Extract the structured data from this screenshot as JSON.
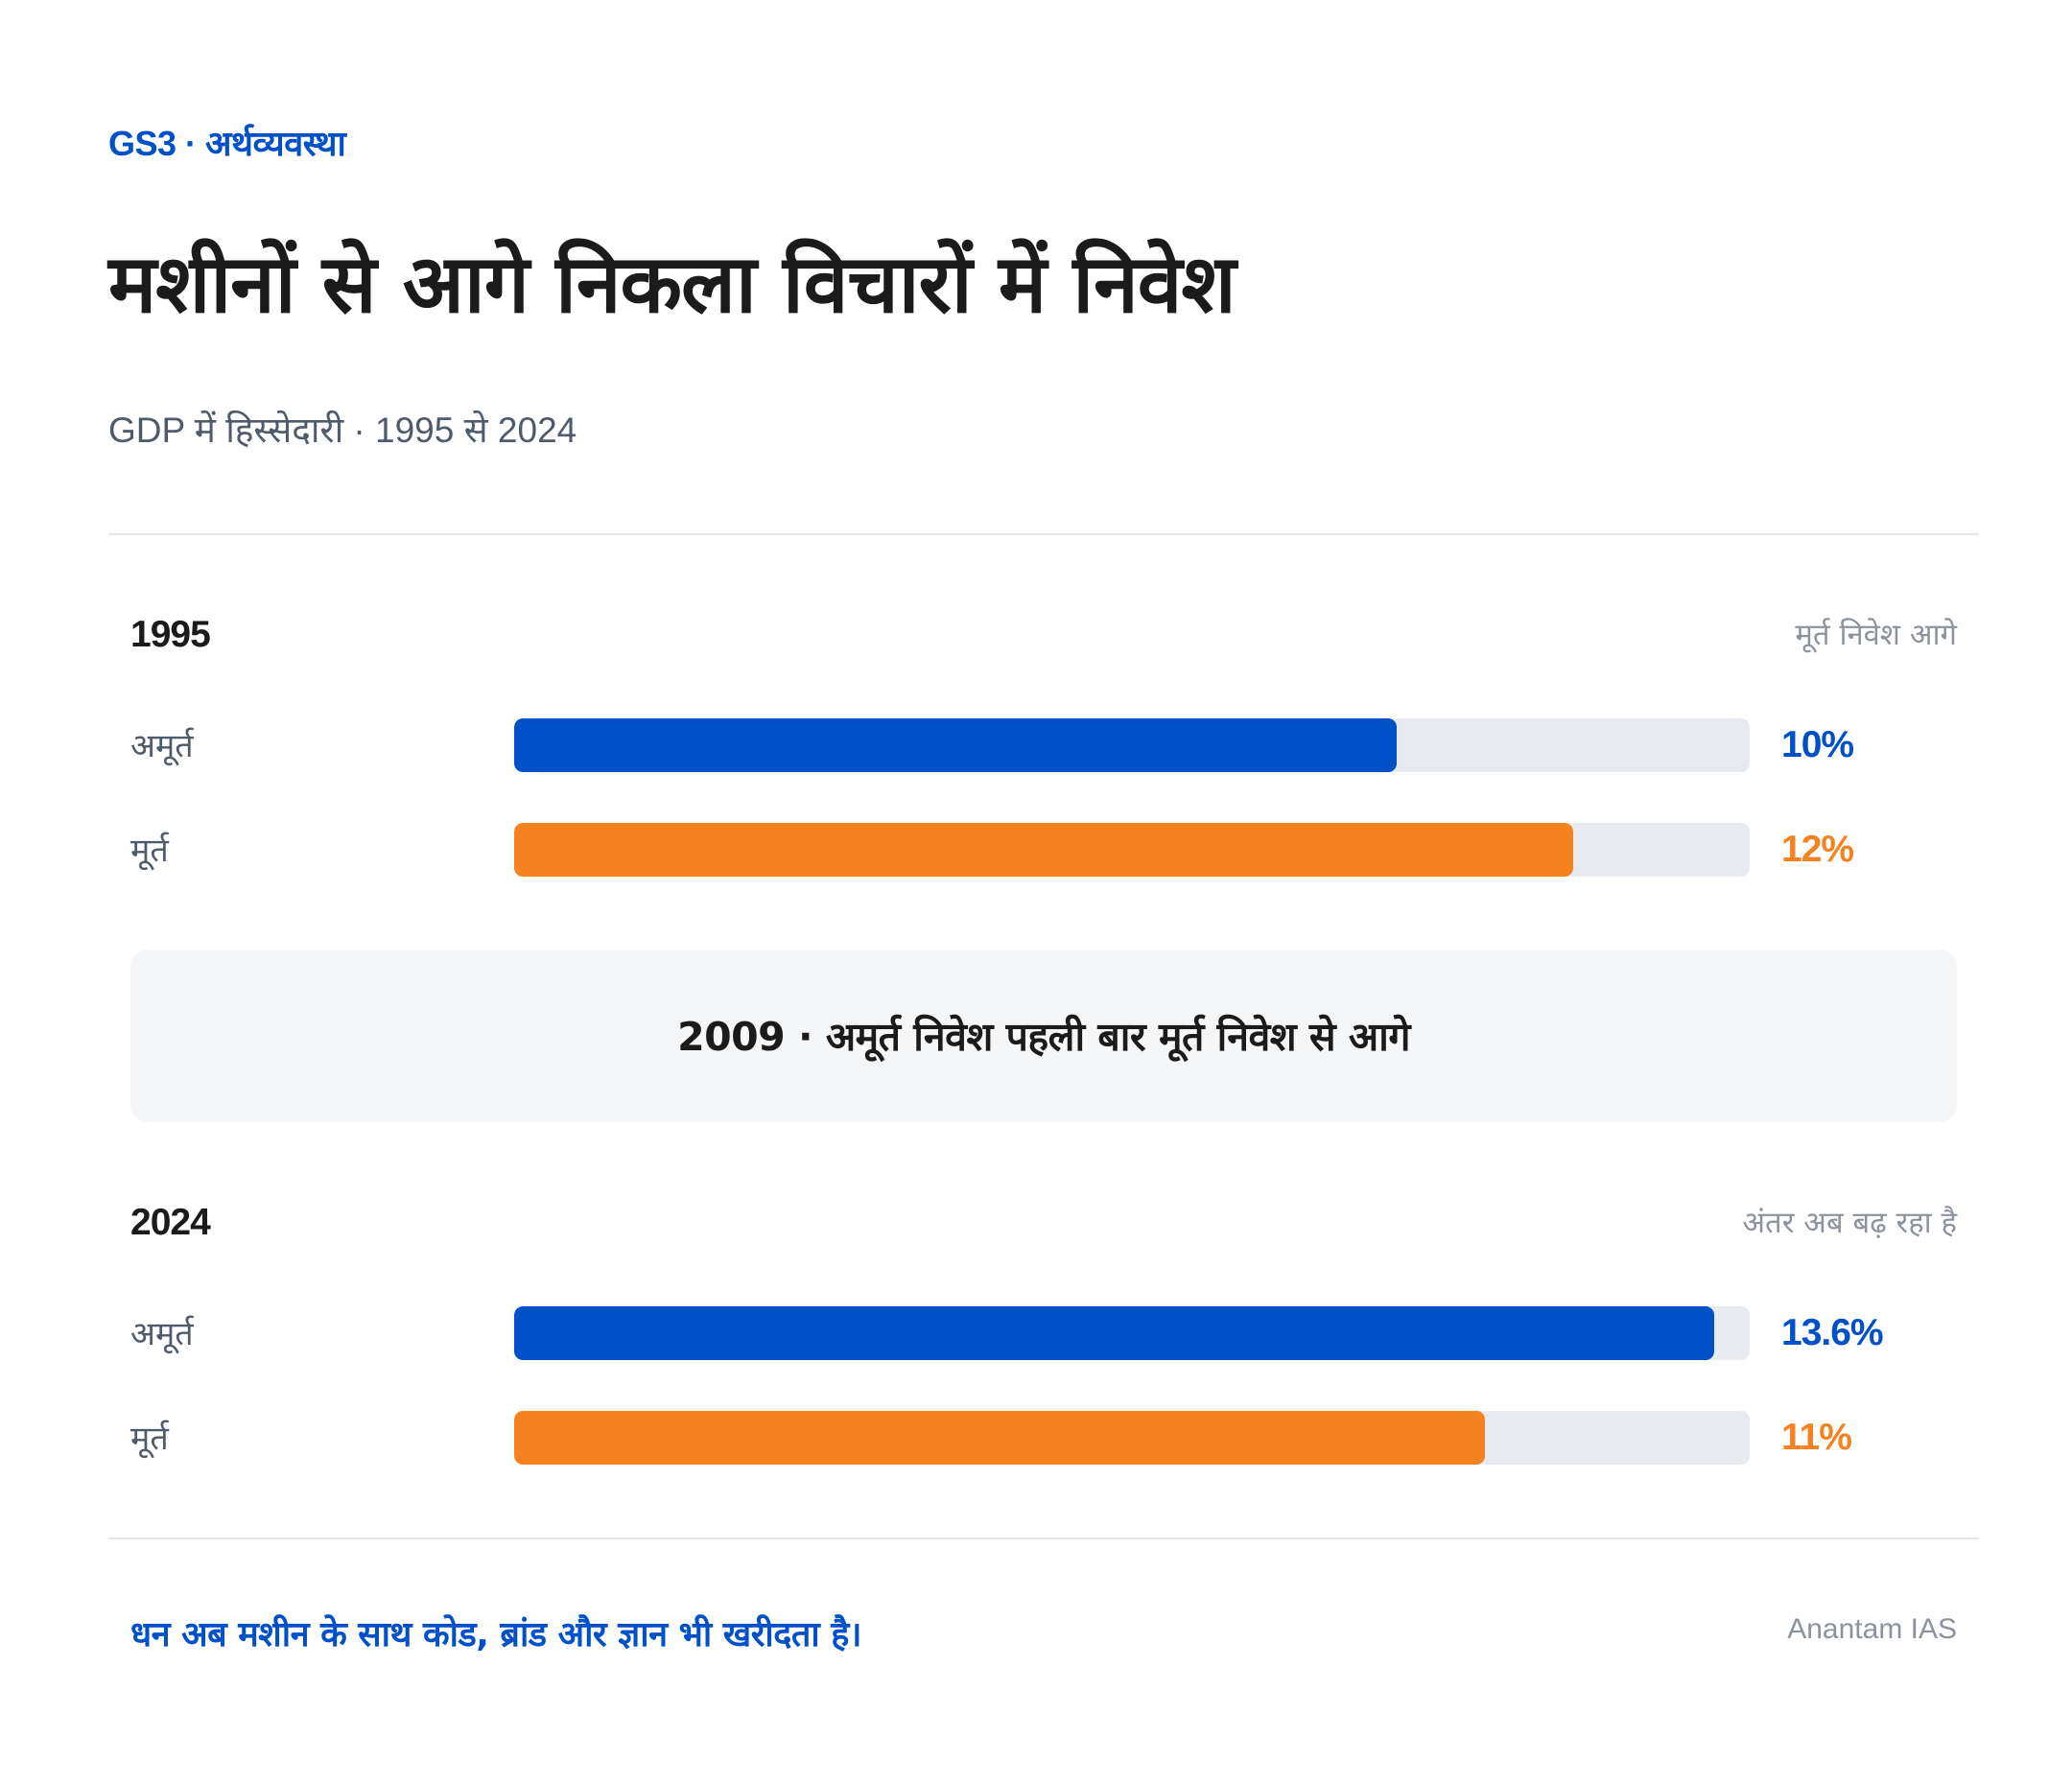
{
  "header": {
    "eyebrow": "GS3 · अर्थव्यवस्था",
    "title": "मशीनों से आगे निकला विचारों में निवेश",
    "subtitle": "GDP में हिस्सेदारी · 1995 से 2024"
  },
  "colors": {
    "accent": "#0050c8",
    "intangible": "#0050c8",
    "tangible": "#f58220",
    "track": "#e7eaee"
  },
  "chart_data": {
    "type": "bar",
    "orientation": "horizontal",
    "unit": "%",
    "scale_max": 14,
    "panels": [
      {
        "year": "1995",
        "note": "मूर्त निवेश आगे",
        "bars": [
          {
            "label": "अमूर्त",
            "value": 10,
            "display": "10%",
            "color": "#0050c8"
          },
          {
            "label": "मूर्त",
            "value": 12,
            "display": "12%",
            "color": "#f58220"
          }
        ]
      },
      {
        "year": "2024",
        "note": "अंतर अब बढ़ रहा है",
        "bars": [
          {
            "label": "अमूर्त",
            "value": 13.6,
            "display": "13.6%",
            "color": "#0050c8"
          },
          {
            "label": "मूर्त",
            "value": 11,
            "display": "11%",
            "color": "#f58220"
          }
        ]
      }
    ],
    "annotation": "2009 · अमूर्त निवेश पहली बार मूर्त निवेश से आगे"
  },
  "footer": {
    "takeaway": "धन अब मशीन के साथ कोड, ब्रांड और ज्ञान भी खरीदता है।",
    "source": "Anantam IAS"
  }
}
